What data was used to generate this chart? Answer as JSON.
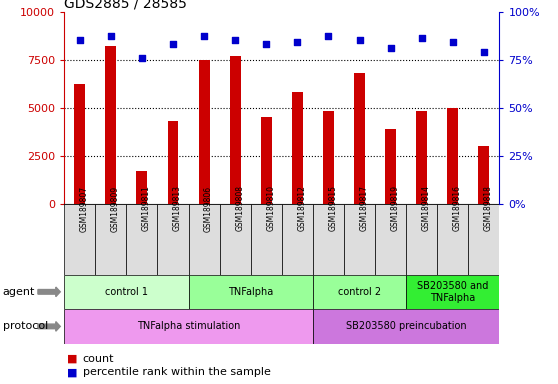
{
  "title": "GDS2885 / 28585",
  "samples": [
    "GSM189807",
    "GSM189809",
    "GSM189811",
    "GSM189813",
    "GSM189806",
    "GSM189808",
    "GSM189810",
    "GSM189812",
    "GSM189815",
    "GSM189817",
    "GSM189819",
    "GSM189814",
    "GSM189816",
    "GSM189818"
  ],
  "counts": [
    6200,
    8200,
    1700,
    4300,
    7500,
    7700,
    4500,
    5800,
    4800,
    6800,
    3900,
    4800,
    5000,
    3000
  ],
  "percentiles": [
    85,
    87,
    76,
    83,
    87,
    85,
    83,
    84,
    87,
    85,
    81,
    86,
    84,
    79
  ],
  "bar_color": "#cc0000",
  "dot_color": "#0000cc",
  "ylim_left": [
    0,
    10000
  ],
  "ylim_right": [
    0,
    100
  ],
  "yticks_left": [
    0,
    2500,
    5000,
    7500,
    10000
  ],
  "yticks_right": [
    0,
    25,
    50,
    75,
    100
  ],
  "yticklabels_right": [
    "0%",
    "25%",
    "50%",
    "75%",
    "100%"
  ],
  "agent_groups": [
    {
      "label": "control 1",
      "start": 0,
      "end": 4,
      "color": "#ccffcc"
    },
    {
      "label": "TNFalpha",
      "start": 4,
      "end": 8,
      "color": "#99ff99"
    },
    {
      "label": "control 2",
      "start": 8,
      "end": 11,
      "color": "#99ff99"
    },
    {
      "label": "SB203580 and\nTNFalpha",
      "start": 11,
      "end": 14,
      "color": "#33ee33"
    }
  ],
  "protocol_groups": [
    {
      "label": "TNFalpha stimulation",
      "start": 0,
      "end": 8,
      "color": "#ee99ee"
    },
    {
      "label": "SB203580 preincubation",
      "start": 8,
      "end": 14,
      "color": "#cc77dd"
    }
  ],
  "agent_label": "agent",
  "protocol_label": "protocol",
  "legend_count_color": "#cc0000",
  "legend_percentile_color": "#0000cc",
  "bg_color": "#ffffff",
  "sample_box_color": "#dddddd",
  "arrow_color": "#888888",
  "grid_color": "black",
  "left_axis_color": "#cc0000",
  "right_axis_color": "#0000cc"
}
